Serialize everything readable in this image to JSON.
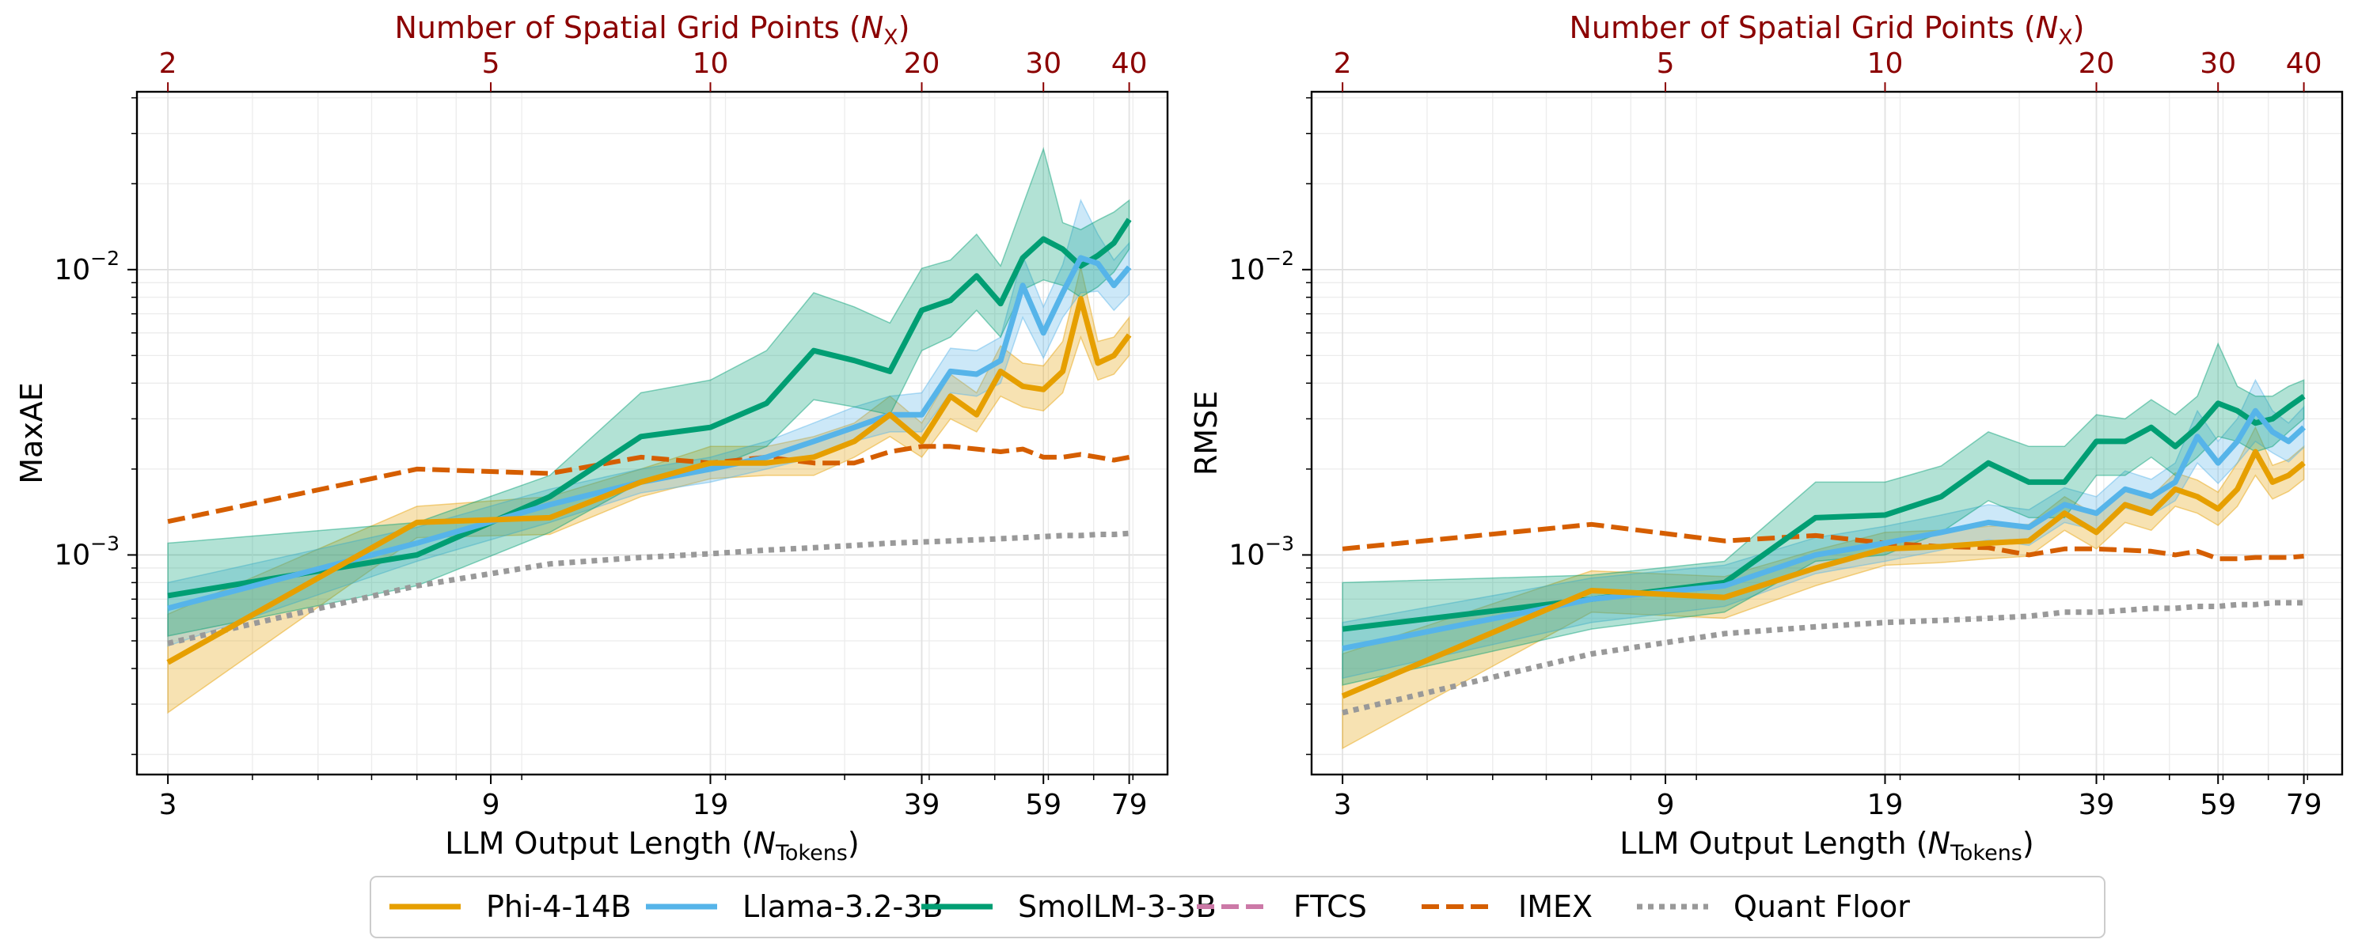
{
  "figure": {
    "legend": [
      {
        "label": "Phi-4-14B",
        "color": "#E69F00",
        "style": "solid"
      },
      {
        "label": "Llama-3.2-3B",
        "color": "#56B4E9",
        "style": "solid"
      },
      {
        "label": "SmolLM-3-3B",
        "color": "#009E73",
        "style": "solid"
      },
      {
        "label": "FTCS",
        "color": "#CC79A7",
        "style": "dashed"
      },
      {
        "label": "IMEX",
        "color": "#D55E00",
        "style": "dashed"
      },
      {
        "label": "Quant Floor",
        "color": "#999999",
        "style": "dotted"
      }
    ]
  },
  "chart_data": [
    {
      "type": "line",
      "panel": "left",
      "ylabel": "MaxAE",
      "xlabel": "LLM Output Length (N_Tokens)",
      "xlabel_main": "LLM Output Length (",
      "xlabel_sym": "N",
      "xlabel_sub": "Tokens",
      "xlabel_end": ")",
      "top_xlabel_main": "Number of Spatial Grid Points (",
      "top_xlabel_sym": "N",
      "top_xlabel_sub": "X",
      "top_xlabel_end": ")",
      "xscale": "log",
      "yscale": "log",
      "xlim": [
        2.7,
        90
      ],
      "ylim": [
        0.00017,
        0.042
      ],
      "xticks": [
        3,
        9,
        19,
        39,
        59,
        79
      ],
      "xtick_labels": [
        "3",
        "9",
        "19",
        "39",
        "59",
        "79"
      ],
      "top_xticks_nx": [
        2,
        5,
        10,
        20,
        30,
        40
      ],
      "top_xtick_labels": [
        "2",
        "5",
        "10",
        "20",
        "30",
        "40"
      ],
      "ytick_labels": [
        {
          "value": 0.01,
          "base": "10",
          "exp": "−2"
        },
        {
          "value": 0.001,
          "base": "10",
          "exp": "−3"
        }
      ],
      "x": [
        3,
        7,
        11,
        15,
        19,
        23,
        27,
        31,
        35,
        39,
        43,
        47,
        51,
        55,
        59,
        63,
        67,
        71,
        75,
        79
      ],
      "series": [
        {
          "name": "Phi-4-14B",
          "color": "#E69F00",
          "values": [
            0.00042,
            0.0013,
            0.00135,
            0.0018,
            0.0021,
            0.0021,
            0.0022,
            0.0025,
            0.0031,
            0.0025,
            0.0036,
            0.0031,
            0.0044,
            0.0039,
            0.0038,
            0.0044,
            0.0079,
            0.0047,
            0.005,
            0.0059
          ],
          "lower": [
            0.00028,
            0.00115,
            0.00118,
            0.0016,
            0.00185,
            0.0019,
            0.0019,
            0.0022,
            0.0026,
            0.0022,
            0.003,
            0.0027,
            0.0036,
            0.0033,
            0.0032,
            0.0037,
            0.0058,
            0.0041,
            0.0043,
            0.005
          ],
          "upper": [
            0.00062,
            0.00148,
            0.0016,
            0.002,
            0.0024,
            0.0024,
            0.0026,
            0.0029,
            0.0036,
            0.0029,
            0.0043,
            0.0037,
            0.0054,
            0.0047,
            0.0046,
            0.0056,
            0.0102,
            0.0056,
            0.0058,
            0.0068
          ]
        },
        {
          "name": "Llama-3.2-3B",
          "color": "#56B4E9",
          "values": [
            0.00065,
            0.0011,
            0.0015,
            0.0018,
            0.002,
            0.0022,
            0.0025,
            0.0028,
            0.0031,
            0.0031,
            0.0044,
            0.0043,
            0.0048,
            0.0088,
            0.006,
            0.0083,
            0.011,
            0.0105,
            0.0088,
            0.0102
          ],
          "lower": [
            0.00048,
            0.00095,
            0.0013,
            0.00165,
            0.0018,
            0.002,
            0.0022,
            0.0025,
            0.0027,
            0.0027,
            0.0037,
            0.0036,
            0.004,
            0.0068,
            0.0049,
            0.0068,
            0.0083,
            0.0084,
            0.0072,
            0.0082
          ],
          "upper": [
            0.0008,
            0.00125,
            0.0017,
            0.002,
            0.0022,
            0.0025,
            0.0029,
            0.0033,
            0.0036,
            0.0037,
            0.0053,
            0.0052,
            0.0058,
            0.0112,
            0.0074,
            0.0104,
            0.0175,
            0.0133,
            0.0108,
            0.0124
          ]
        },
        {
          "name": "SmolLM-3-3B",
          "color": "#009E73",
          "values": [
            0.00072,
            0.001,
            0.0016,
            0.0026,
            0.0028,
            0.0034,
            0.0052,
            0.0048,
            0.0044,
            0.0072,
            0.0078,
            0.0095,
            0.0076,
            0.011,
            0.0128,
            0.0118,
            0.0103,
            0.0112,
            0.0124,
            0.015
          ],
          "lower": [
            0.00052,
            0.00078,
            0.0012,
            0.0018,
            0.002,
            0.0024,
            0.0035,
            0.0033,
            0.0031,
            0.0052,
            0.0058,
            0.0072,
            0.0058,
            0.0085,
            0.0092,
            0.0088,
            0.008,
            0.0087,
            0.0098,
            0.0118
          ],
          "upper": [
            0.0011,
            0.0013,
            0.0019,
            0.0037,
            0.0041,
            0.0052,
            0.0083,
            0.0074,
            0.0065,
            0.0101,
            0.0108,
            0.0133,
            0.0103,
            0.0168,
            0.0265,
            0.0146,
            0.0138,
            0.0149,
            0.0159,
            0.0175
          ]
        },
        {
          "name": "IMEX",
          "color": "#D55E00",
          "style": "dashed",
          "values": [
            0.00131,
            0.002,
            0.00193,
            0.0022,
            0.0021,
            0.0022,
            0.0021,
            0.0021,
            0.0023,
            0.0024,
            0.0024,
            0.00235,
            0.0023,
            0.00235,
            0.0022,
            0.0022,
            0.00225,
            0.0022,
            0.00215,
            0.0022
          ]
        },
        {
          "name": "Quant Floor",
          "color": "#999999",
          "style": "dotted",
          "values": [
            0.00049,
            0.00078,
            0.00093,
            0.00098,
            0.00101,
            0.00104,
            0.00106,
            0.00108,
            0.0011,
            0.00111,
            0.00112,
            0.00113,
            0.00114,
            0.00115,
            0.00116,
            0.00117,
            0.00117,
            0.00118,
            0.00118,
            0.00119
          ]
        }
      ]
    },
    {
      "type": "line",
      "panel": "right",
      "ylabel": "RMSE",
      "xlabel": "LLM Output Length (N_Tokens)",
      "xlabel_main": "LLM Output Length (",
      "xlabel_sym": "N",
      "xlabel_sub": "Tokens",
      "xlabel_end": ")",
      "top_xlabel_main": "Number of Spatial Grid Points (",
      "top_xlabel_sym": "N",
      "top_xlabel_sub": "X",
      "top_xlabel_end": ")",
      "xscale": "log",
      "yscale": "log",
      "xlim": [
        2.7,
        90
      ],
      "ylim": [
        0.00017,
        0.042
      ],
      "xticks": [
        3,
        9,
        19,
        39,
        59,
        79
      ],
      "xtick_labels": [
        "3",
        "9",
        "19",
        "39",
        "59",
        "79"
      ],
      "top_xticks_nx": [
        2,
        5,
        10,
        20,
        30,
        40
      ],
      "top_xtick_labels": [
        "2",
        "5",
        "10",
        "20",
        "30",
        "40"
      ],
      "ytick_labels": [
        {
          "value": 0.01,
          "base": "10",
          "exp": "−2"
        },
        {
          "value": 0.001,
          "base": "10",
          "exp": "−3"
        }
      ],
      "x": [
        3,
        7,
        11,
        15,
        19,
        23,
        27,
        31,
        35,
        39,
        43,
        47,
        51,
        55,
        59,
        63,
        67,
        71,
        75,
        79
      ],
      "series": [
        {
          "name": "Phi-4-14B",
          "color": "#E69F00",
          "values": [
            0.00032,
            0.00075,
            0.00071,
            0.0009,
            0.00105,
            0.00107,
            0.0011,
            0.00112,
            0.0014,
            0.0012,
            0.0015,
            0.0014,
            0.0017,
            0.0016,
            0.00145,
            0.0017,
            0.0023,
            0.0018,
            0.0019,
            0.0021
          ],
          "lower": [
            0.00021,
            0.00063,
            0.0006,
            0.00078,
            0.00092,
            0.00094,
            0.00097,
            0.00099,
            0.00122,
            0.00105,
            0.0013,
            0.00122,
            0.00148,
            0.0014,
            0.00127,
            0.00148,
            0.0019,
            0.00157,
            0.00167,
            0.00184
          ],
          "upper": [
            0.00045,
            0.00088,
            0.00084,
            0.00104,
            0.0012,
            0.00122,
            0.00126,
            0.00128,
            0.0016,
            0.00138,
            0.00172,
            0.0016,
            0.00194,
            0.00183,
            0.00166,
            0.0021,
            0.0028,
            0.00206,
            0.00216,
            0.0024
          ]
        },
        {
          "name": "Llama-3.2-3B",
          "color": "#56B4E9",
          "values": [
            0.00047,
            0.0007,
            0.00078,
            0.001,
            0.0011,
            0.0012,
            0.0013,
            0.00125,
            0.0015,
            0.0014,
            0.0017,
            0.0016,
            0.0018,
            0.0026,
            0.0021,
            0.0025,
            0.0032,
            0.0027,
            0.0025,
            0.0028
          ],
          "lower": [
            0.00037,
            0.00058,
            0.00066,
            0.00086,
            0.00095,
            0.00104,
            0.00113,
            0.00108,
            0.0013,
            0.00122,
            0.00146,
            0.00138,
            0.00155,
            0.0021,
            0.00178,
            0.0021,
            0.0025,
            0.00228,
            0.00212,
            0.00238
          ],
          "upper": [
            0.00058,
            0.00083,
            0.00092,
            0.00115,
            0.00126,
            0.00138,
            0.0015,
            0.00144,
            0.00172,
            0.0016,
            0.00197,
            0.00184,
            0.0021,
            0.0032,
            0.0025,
            0.003,
            0.0041,
            0.0032,
            0.0029,
            0.0033
          ]
        },
        {
          "name": "SmolLM-3-3B",
          "color": "#009E73",
          "values": [
            0.00055,
            0.0007,
            0.0008,
            0.00135,
            0.00138,
            0.0016,
            0.0021,
            0.0018,
            0.0018,
            0.0025,
            0.0025,
            0.0028,
            0.0024,
            0.0028,
            0.0034,
            0.0032,
            0.0029,
            0.003,
            0.0033,
            0.0036
          ],
          "lower": [
            0.00035,
            0.00055,
            0.00063,
            0.00095,
            0.001,
            0.0012,
            0.00155,
            0.00135,
            0.00135,
            0.0019,
            0.0019,
            0.0022,
            0.0019,
            0.0022,
            0.0026,
            0.0025,
            0.0023,
            0.0024,
            0.0027,
            0.003
          ],
          "upper": [
            0.0008,
            0.00085,
            0.00095,
            0.0018,
            0.0018,
            0.00205,
            0.0027,
            0.0024,
            0.0024,
            0.0031,
            0.003,
            0.0035,
            0.0031,
            0.0036,
            0.0055,
            0.0039,
            0.0036,
            0.0036,
            0.0039,
            0.0041
          ]
        },
        {
          "name": "IMEX",
          "color": "#D55E00",
          "style": "dashed",
          "values": [
            0.00105,
            0.00128,
            0.00112,
            0.00117,
            0.0011,
            0.00107,
            0.00106,
            0.001,
            0.00105,
            0.00105,
            0.00104,
            0.00103,
            0.001,
            0.00103,
            0.00097,
            0.00097,
            0.00098,
            0.00098,
            0.00098,
            0.00099
          ]
        },
        {
          "name": "Quant Floor",
          "color": "#999999",
          "style": "dotted",
          "values": [
            0.00028,
            0.00045,
            0.00053,
            0.00056,
            0.00058,
            0.00059,
            0.0006,
            0.00061,
            0.00063,
            0.00063,
            0.00064,
            0.00065,
            0.00065,
            0.00066,
            0.00066,
            0.00067,
            0.00067,
            0.00068,
            0.00068,
            0.00068
          ]
        }
      ]
    }
  ]
}
